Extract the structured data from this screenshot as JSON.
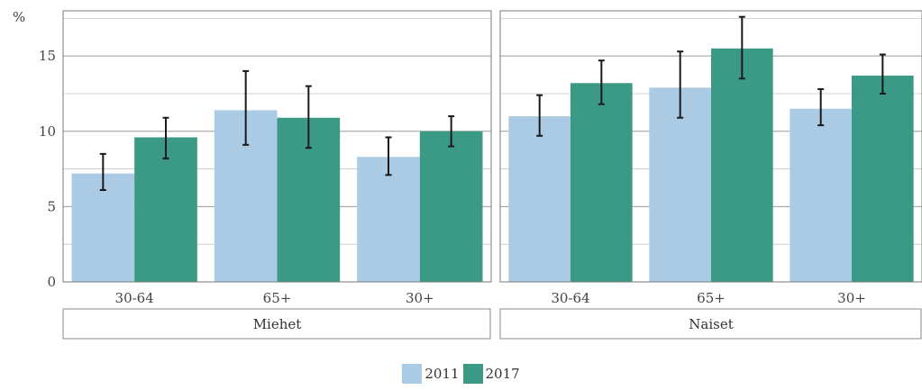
{
  "chart_data": {
    "type": "bar",
    "ylabel": "%",
    "ylim": [
      0,
      18
    ],
    "yticks": [
      0,
      5,
      10,
      15
    ],
    "grid": true,
    "legend_position": "bottom",
    "series": [
      {
        "name": "2011",
        "color": "#aacbe3"
      },
      {
        "name": "2017",
        "color": "#3a9a86"
      }
    ],
    "panels": [
      {
        "label": "Miehet",
        "categories": [
          "30-64",
          "65+",
          "30+"
        ],
        "values": {
          "2011": [
            7.2,
            11.4,
            8.3
          ],
          "2017": [
            9.6,
            10.9,
            10.0
          ]
        },
        "error_low": {
          "2011": [
            6.1,
            9.1,
            7.1
          ],
          "2017": [
            8.2,
            8.9,
            9.0
          ]
        },
        "error_high": {
          "2011": [
            8.5,
            14.0,
            9.6
          ],
          "2017": [
            10.9,
            13.0,
            11.0
          ]
        }
      },
      {
        "label": "Naiset",
        "categories": [
          "30-64",
          "65+",
          "30+"
        ],
        "values": {
          "2011": [
            11.0,
            12.9,
            11.5
          ],
          "2017": [
            13.2,
            15.5,
            13.7
          ]
        },
        "error_low": {
          "2011": [
            9.7,
            10.9,
            10.4
          ],
          "2017": [
            11.8,
            13.5,
            12.5
          ]
        },
        "error_high": {
          "2011": [
            12.4,
            15.3,
            12.8
          ],
          "2017": [
            14.7,
            17.6,
            15.1
          ]
        }
      }
    ]
  }
}
